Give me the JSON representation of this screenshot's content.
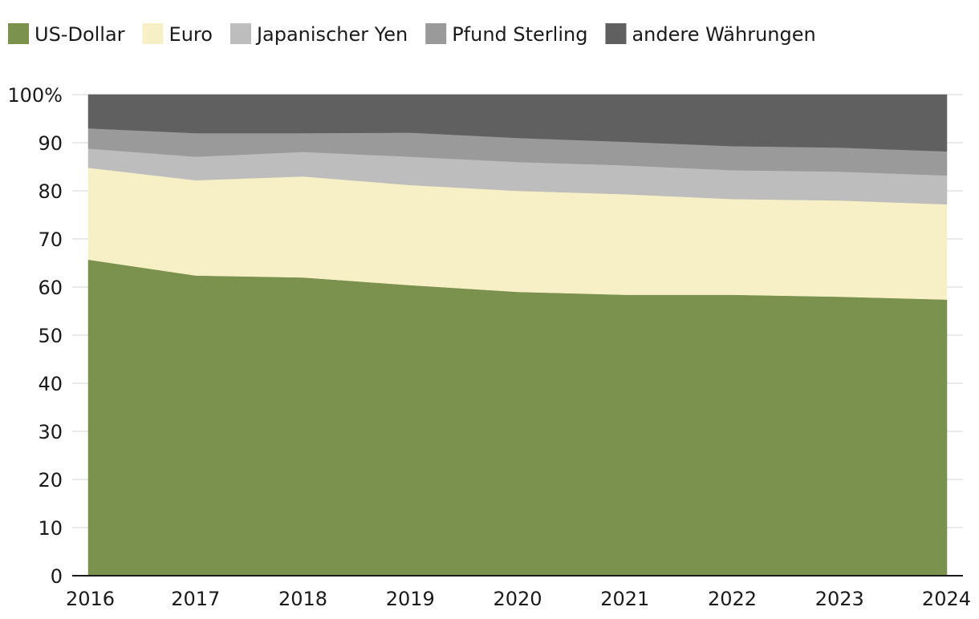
{
  "chart_data": {
    "type": "area",
    "stacked": true,
    "percent": true,
    "x": [
      "2016",
      "2017",
      "2018",
      "2019",
      "2020",
      "2021",
      "2022",
      "2023",
      "2024"
    ],
    "ylim": [
      0,
      100
    ],
    "yticks": [
      0,
      10,
      20,
      30,
      40,
      50,
      60,
      70,
      80,
      90,
      100
    ],
    "ytick_labels": [
      "0",
      "10",
      "20",
      "30",
      "40",
      "50",
      "60",
      "70",
      "80",
      "90",
      "100%"
    ],
    "grid": "horizontal",
    "legend_position": "top-left",
    "series": [
      {
        "name": "US-Dollar",
        "color": "#7b914e",
        "values": [
          65.7,
          62.4,
          62.0,
          60.4,
          59.0,
          58.4,
          58.4,
          58.0,
          57.4
        ]
      },
      {
        "name": "Euro",
        "color": "#f7f0c6",
        "values": [
          19.1,
          19.8,
          21.0,
          20.8,
          21.0,
          20.9,
          19.9,
          20.0,
          19.8
        ]
      },
      {
        "name": "Japanischer Yen",
        "color": "#bdbdbd",
        "values": [
          4.0,
          4.9,
          5.1,
          5.9,
          6.0,
          6.0,
          6.0,
          6.0,
          6.0
        ]
      },
      {
        "name": "Pfund Sterling",
        "color": "#9a9a9a",
        "values": [
          4.2,
          4.9,
          3.9,
          5.0,
          5.0,
          4.9,
          5.0,
          5.0,
          5.0
        ]
      },
      {
        "name": "andere Währungen",
        "color": "#606060",
        "values": [
          7.0,
          8.0,
          8.0,
          7.9,
          9.0,
          9.8,
          10.7,
          11.0,
          11.8
        ]
      }
    ]
  }
}
